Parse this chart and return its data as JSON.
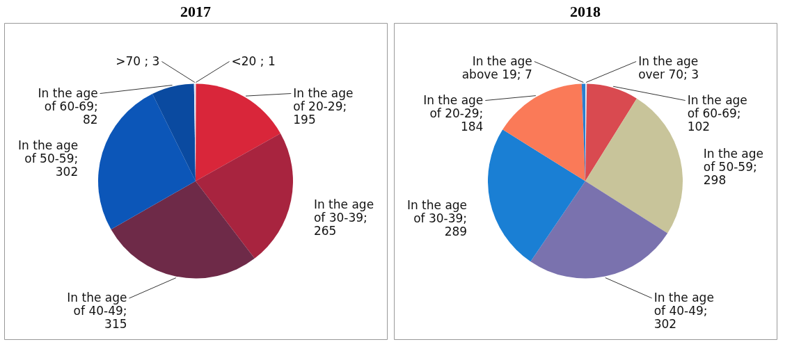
{
  "chart_data": [
    {
      "type": "pie",
      "title": "2017",
      "categories": [
        "<20 ; 1",
        "In the age of 20-29; 195",
        "In the age of 30-39; 265",
        "In the age of 40-49; 315",
        "In the age of 50-59; 302",
        "In the age of 60-69; 82",
        ">70 ; 3"
      ],
      "values": [
        1,
        195,
        265,
        315,
        302,
        82,
        3
      ],
      "colors": [
        "#f4a0a8",
        "#d9263a",
        "#a8243f",
        "#6e2a48",
        "#0c56b8",
        "#0a4aa0",
        "#dde6f4"
      ]
    },
    {
      "type": "pie",
      "title": "2018",
      "categories": [
        "In the age over 70; 3",
        "In the age of 60-69; 102",
        "In the age of 50-59; 298",
        "In the age of 40-49; 302",
        "In the age of 30-39; 289",
        "In the age of 20-29; 184",
        "In the age above 19; 7"
      ],
      "values": [
        3,
        102,
        298,
        302,
        289,
        184,
        7
      ],
      "colors": [
        "#dde9f6",
        "#d94a50",
        "#c8c49a",
        "#7a72ae",
        "#1a7fd4",
        "#fa7a58",
        "#2a7fd0"
      ]
    }
  ]
}
